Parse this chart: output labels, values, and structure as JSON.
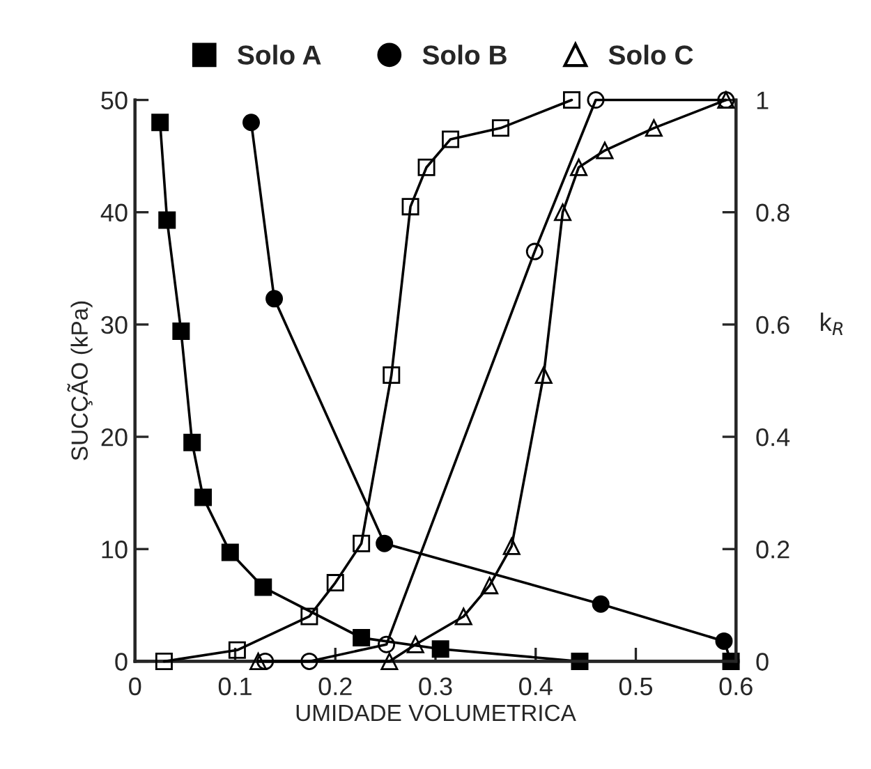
{
  "chart_data": {
    "type": "line",
    "xlabel": "UMIDADE VOLUMETRICA",
    "ylabel": "SUCÇÃO (kPa)",
    "y2label": "k$_{R}$",
    "xlim": [
      0,
      0.6
    ],
    "xticks": [
      0,
      0.1,
      0.2,
      0.3,
      0.4,
      0.5,
      0.6
    ],
    "ylim": [
      0,
      50
    ],
    "yticks": [
      0,
      10,
      20,
      30,
      40,
      50
    ],
    "y2lim": [
      0,
      1
    ],
    "y2ticks": [
      0,
      0.2,
      0.4,
      0.6,
      0.8,
      1
    ],
    "grid": false,
    "legend": "top",
    "line_style": "solid",
    "series": [
      {
        "name": "Solo A",
        "color": "#000000",
        "marker": "square",
        "x": [
          0.025,
          0.032,
          0.046,
          0.057,
          0.068,
          0.095,
          0.128,
          0.226,
          0.305,
          0.444,
          0.595
        ],
        "values": [
          48,
          39.3,
          29.4,
          19.5,
          14.6,
          9.7,
          6.6,
          2.1,
          1.1,
          0,
          0
        ]
      },
      {
        "name": "Solo B",
        "color": "#000000",
        "marker": "circle",
        "x": [
          0.116,
          0.139,
          0.249,
          0.465,
          0.588,
          0.595
        ],
        "values": [
          48,
          32.3,
          10.5,
          5.1,
          1.8,
          0
        ]
      },
      {
        "color": "#000000",
        "marker": "square",
        "axis": "y2",
        "x": [
          0.029,
          0.102,
          0.174,
          0.2,
          0.226,
          0.256,
          0.275,
          0.291,
          0.315,
          0.365,
          0.436
        ],
        "values": [
          0,
          0.02,
          0.08,
          0.14,
          0.21,
          0.51,
          0.81,
          0.88,
          0.93,
          0.95,
          1
        ]
      },
      {
        "color": "#000000",
        "marker": "circle",
        "axis": "y2",
        "x": [
          0.13,
          0.174,
          0.251,
          0.399,
          0.46,
          0.59
        ],
        "values": [
          0,
          0,
          0.03,
          0.73,
          1,
          1
        ]
      },
      {
        "name": "Solo C",
        "color": "#000000",
        "marker": "triangle",
        "axis": "y2",
        "x": [
          0.123,
          0.254,
          0.28,
          0.328,
          0.354,
          0.376,
          0.408,
          0.427,
          0.443,
          0.469,
          0.518,
          0.59
        ],
        "values": [
          0,
          0,
          0.03,
          0.08,
          0.135,
          0.205,
          0.51,
          0.8,
          0.88,
          0.91,
          0.95,
          1
        ]
      }
    ]
  }
}
